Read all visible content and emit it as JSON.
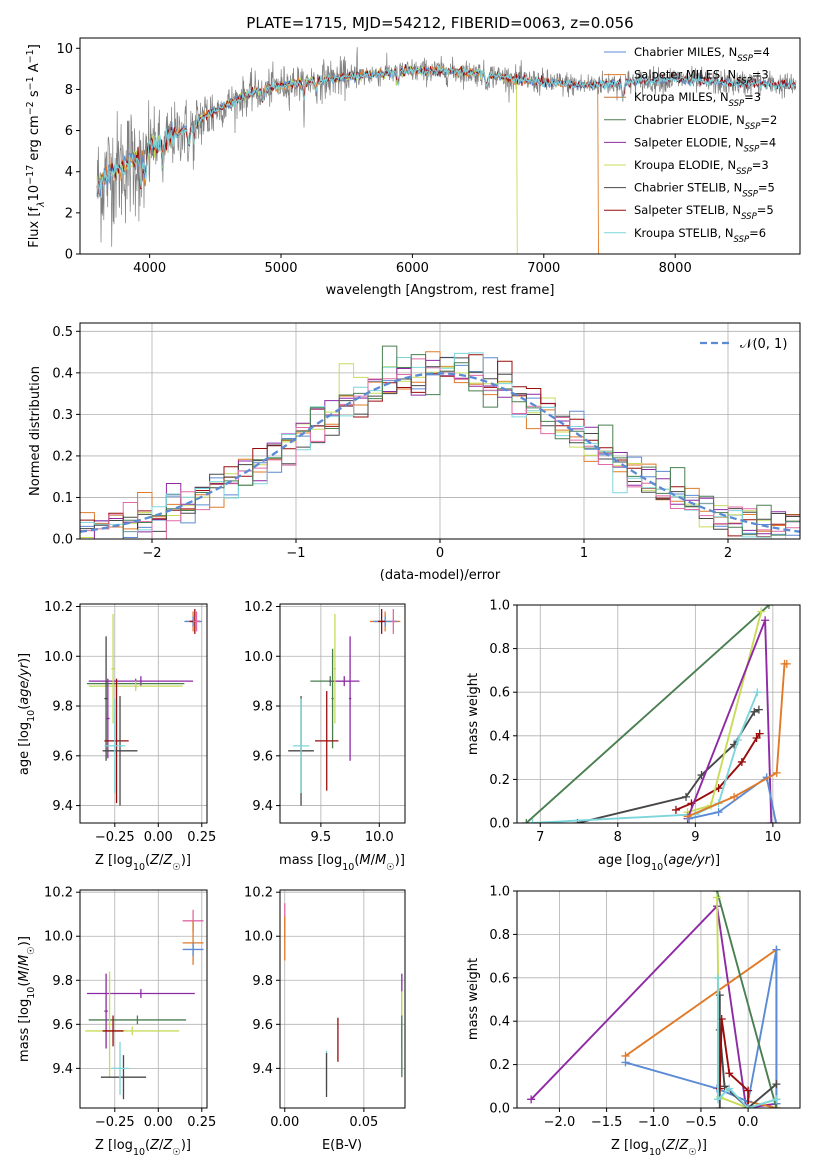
{
  "figure": {
    "title": "PLATE=1715, MJD=54212, FIBERID=0063, z=0.056"
  },
  "colors": {
    "chabrier_miles": "#5b8bd4",
    "salpeter_miles": "#e07a28",
    "kroupa_miles": "#c87530",
    "chabrier_elodie": "#4a7f50",
    "salpeter_elodie": "#8e2aa4",
    "kroupa_elodie": "#c8dc5a",
    "chabrier_stelib": "#484848",
    "salpeter_stelib": "#9a0c0c",
    "kroupa_stelib": "#7dd6dc",
    "pink": "#e06aa6",
    "spectrum": "#7f7f7f",
    "gaussian": "#5b8bd4"
  },
  "legend_spectrum": [
    {
      "label": "Chabrier MILES, N",
      "sub": "SSP",
      "tail": "=4",
      "color": "#5b8bd4"
    },
    {
      "label": "Salpeter MILES, N",
      "sub": "SSP",
      "tail": "=3",
      "color": "#e07a28"
    },
    {
      "label": "Kroupa MILES, N",
      "sub": "SSP",
      "tail": "=3",
      "color": "#c87530"
    },
    {
      "label": "Chabrier ELODIE, N",
      "sub": "SSP",
      "tail": "=2",
      "color": "#4a7f50"
    },
    {
      "label": "Salpeter ELODIE, N",
      "sub": "SSP",
      "tail": "=4",
      "color": "#8e2aa4"
    },
    {
      "label": "Kroupa ELODIE, N",
      "sub": "SSP",
      "tail": "=3",
      "color": "#c8dc5a"
    },
    {
      "label": "Chabrier STELIB, N",
      "sub": "SSP",
      "tail": "=5",
      "color": "#484848"
    },
    {
      "label": "Salpeter STELIB, N",
      "sub": "SSP",
      "tail": "=5",
      "color": "#9a0c0c"
    },
    {
      "label": "Kroupa STELIB, N",
      "sub": "SSP",
      "tail": "=6",
      "color": "#7dd6dc"
    }
  ],
  "legend_hist": {
    "label": "𝒩(0, 1)"
  },
  "chart_data": [
    {
      "id": "spectrum",
      "type": "line",
      "title": "PLATE=1715, MJD=54212, FIBERID=0063, z=0.056",
      "xlabel": "wavelength [Angstrom, rest frame]",
      "ylabel_parts": [
        "Flux [f",
        "λ",
        "10",
        "−17",
        " erg cm",
        "−2",
        " s",
        "−1",
        " A",
        "−1",
        "]"
      ],
      "xlim": [
        3470,
        8950
      ],
      "ylim": [
        0,
        10.5
      ],
      "xticks": [
        4000,
        5000,
        6000,
        7000,
        8000
      ],
      "yticks": [
        0,
        2,
        4,
        6,
        8,
        10
      ],
      "continuum_x": [
        3600,
        3700,
        3800,
        3900,
        4000,
        4200,
        4400,
        4600,
        4800,
        5000,
        5200,
        5500,
        5800,
        6000,
        6200,
        6500,
        6700,
        6900,
        7100,
        7300,
        7500,
        7800,
        8000,
        8200,
        8400,
        8600,
        8900
      ],
      "continuum_y": [
        3.2,
        4.0,
        4.2,
        4.7,
        5.2,
        5.8,
        6.6,
        7.3,
        7.9,
        8.2,
        8.4,
        8.6,
        8.8,
        8.9,
        8.9,
        8.8,
        8.6,
        8.4,
        8.3,
        8.2,
        8.3,
        8.4,
        8.5,
        8.4,
        8.3,
        8.3,
        8.2
      ],
      "data_range": [
        3600,
        8920
      ]
    },
    {
      "id": "residuals",
      "type": "bar",
      "xlabel": "(data-model)/error",
      "ylabel": "Normed distribution",
      "xlim": [
        -2.5,
        2.5
      ],
      "ylim": [
        0,
        0.52
      ],
      "xticks": [
        -2,
        -1,
        0,
        1,
        2
      ],
      "yticks": [
        0.0,
        0.1,
        0.2,
        0.3,
        0.4,
        0.5
      ],
      "bin_width": 0.1,
      "grid": true,
      "legend_position": "top-right"
    },
    {
      "id": "z_age",
      "type": "scatter",
      "xlabel": "Z [log10(Z/Z☉)]",
      "ylabel": "age [log10(age/yr)]",
      "xlim": [
        -0.45,
        0.28
      ],
      "ylim": [
        9.33,
        10.21
      ],
      "xticks": [
        -0.25,
        0.0,
        0.25
      ],
      "yticks": [
        9.4,
        9.6,
        9.8,
        10.0,
        10.2
      ],
      "points": [
        {
          "x": 0.2,
          "y": 10.14,
          "xerr": 0.04,
          "yerr": 0.04,
          "color": "#e07a28"
        },
        {
          "x": 0.2,
          "y": 10.14,
          "xerr": 0.05,
          "yerr": 0.02,
          "color": "#5b8bd4"
        },
        {
          "x": 0.21,
          "y": 10.14,
          "xerr": 0.03,
          "yerr": 0.05,
          "color": "#9a0c0c"
        },
        {
          "x": 0.22,
          "y": 10.14,
          "xerr": 0.02,
          "yerr": 0.04,
          "color": "#e06aa6"
        },
        {
          "x": -0.1,
          "y": 9.9,
          "xerr": 0.3,
          "yerr": 0.02,
          "color": "#8e2aa4"
        },
        {
          "x": -0.13,
          "y": 9.89,
          "xerr": 0.28,
          "yerr": 0.02,
          "color": "#4a7f50"
        },
        {
          "x": -0.13,
          "y": 9.88,
          "xerr": 0.27,
          "yerr": 0.02,
          "color": "#c8dc5a"
        },
        {
          "x": -0.3,
          "y": 9.83,
          "xerr": 0.01,
          "yerr": 0.25,
          "color": "#484848"
        },
        {
          "x": -0.26,
          "y": 9.95,
          "xerr": 0.01,
          "yerr": 0.22,
          "color": "#c8dc5a"
        },
        {
          "x": -0.29,
          "y": 9.75,
          "xerr": 0.01,
          "yerr": 0.16,
          "color": "#8e2aa4"
        },
        {
          "x": -0.24,
          "y": 9.66,
          "xerr": 0.07,
          "yerr": 0.25,
          "color": "#9a0c0c"
        },
        {
          "x": -0.22,
          "y": 9.62,
          "xerr": 0.1,
          "yerr": 0.22,
          "color": "#484848"
        },
        {
          "x": -0.25,
          "y": 9.64,
          "xerr": 0.06,
          "yerr": 0.19,
          "color": "#7dd6dc"
        }
      ]
    },
    {
      "id": "mass_age",
      "type": "scatter",
      "xlabel": "mass [log10(M/M☉)]",
      "ylabel": "",
      "xlim": [
        9.15,
        10.22
      ],
      "ylim": [
        9.33,
        10.21
      ],
      "xticks": [
        9.5,
        10.0
      ],
      "yticks": [
        9.4,
        9.6,
        9.8,
        10.0,
        10.2
      ],
      "points": [
        {
          "x": 10.05,
          "y": 10.14,
          "xerr": 0.13,
          "yerr": 0.04,
          "color": "#e07a28"
        },
        {
          "x": 10.05,
          "y": 10.14,
          "xerr": 0.1,
          "yerr": 0.02,
          "color": "#5b8bd4"
        },
        {
          "x": 10.02,
          "y": 10.14,
          "xerr": 0.03,
          "yerr": 0.05,
          "color": "#9a0c0c"
        },
        {
          "x": 10.12,
          "y": 10.14,
          "xerr": 0.02,
          "yerr": 0.05,
          "color": "#e06aa6"
        },
        {
          "x": 9.58,
          "y": 9.9,
          "xerr": 0.17,
          "yerr": 0.02,
          "color": "#4a7f50"
        },
        {
          "x": 9.7,
          "y": 9.9,
          "xerr": 0.13,
          "yerr": 0.02,
          "color": "#8e2aa4"
        },
        {
          "x": 9.75,
          "y": 9.83,
          "xerr": 0.01,
          "yerr": 0.25,
          "color": "#8e2aa4"
        },
        {
          "x": 9.62,
          "y": 9.95,
          "xerr": 0.01,
          "yerr": 0.22,
          "color": "#c8dc5a"
        },
        {
          "x": 9.6,
          "y": 9.83,
          "xerr": 0.01,
          "yerr": 0.2,
          "color": "#4a7f50"
        },
        {
          "x": 9.55,
          "y": 9.66,
          "xerr": 0.1,
          "yerr": 0.2,
          "color": "#9a0c0c"
        },
        {
          "x": 9.33,
          "y": 9.62,
          "xerr": 0.11,
          "yerr": 0.22,
          "color": "#484848"
        },
        {
          "x": 9.33,
          "y": 9.64,
          "xerr": 0.07,
          "yerr": 0.19,
          "color": "#7dd6dc"
        }
      ]
    },
    {
      "id": "age_massweight",
      "type": "line",
      "xlabel": "age [log10(age/yr)]",
      "ylabel": "mass weight",
      "xlim": [
        6.7,
        10.35
      ],
      "ylim": [
        0,
        1.0
      ],
      "xticks": [
        7,
        8,
        9,
        10
      ],
      "yticks": [
        0.0,
        0.2,
        0.4,
        0.6,
        0.8,
        1.0
      ],
      "grid": true,
      "series": [
        {
          "color": "#4a7f50",
          "x": [
            6.82,
            9.95
          ],
          "y": [
            0.0,
            1.0
          ]
        },
        {
          "color": "#484848",
          "x": [
            7.48,
            8.88,
            9.08,
            9.5,
            9.76,
            9.82
          ],
          "y": [
            0.0,
            0.12,
            0.22,
            0.36,
            0.51,
            0.52
          ]
        },
        {
          "color": "#9a0c0c",
          "x": [
            8.75,
            8.95,
            9.3,
            9.6,
            9.79,
            9.83
          ],
          "y": [
            0.06,
            0.09,
            0.16,
            0.28,
            0.39,
            0.41
          ]
        },
        {
          "color": "#c8dc5a",
          "x": [
            8.9,
            9.2,
            9.85
          ],
          "y": [
            0.05,
            0.08,
            0.97
          ]
        },
        {
          "color": "#7dd6dc",
          "x": [
            6.9,
            9.0,
            9.3,
            9.55,
            9.8
          ],
          "y": [
            0.0,
            0.04,
            0.09,
            0.38,
            0.6
          ]
        },
        {
          "color": "#8e2aa4",
          "x": [
            8.9,
            9.9,
            9.98
          ],
          "y": [
            0.02,
            0.93,
            0.0
          ]
        },
        {
          "color": "#5b8bd4",
          "x": [
            8.92,
            9.3,
            9.92,
            10.04
          ],
          "y": [
            0.02,
            0.05,
            0.21,
            0.0
          ]
        },
        {
          "color": "#e07a28",
          "x": [
            8.9,
            9.5,
            10.05,
            10.15,
            10.18
          ],
          "y": [
            0.03,
            0.12,
            0.23,
            0.73,
            0.73
          ]
        }
      ]
    },
    {
      "id": "z_mass",
      "type": "scatter",
      "xlabel": "Z [log10(Z/Z☉)]",
      "ylabel": "mass [log10(M/M☉)]",
      "xlim": [
        -0.45,
        0.28
      ],
      "ylim": [
        9.22,
        10.21
      ],
      "xticks": [
        -0.25,
        0.0,
        0.25
      ],
      "yticks": [
        9.4,
        9.6,
        9.8,
        10.0,
        10.2
      ],
      "points": [
        {
          "x": 0.2,
          "y": 10.07,
          "xerr": 0.06,
          "yerr": 0.05,
          "color": "#e06aa6"
        },
        {
          "x": 0.2,
          "y": 9.97,
          "xerr": 0.06,
          "yerr": 0.1,
          "color": "#e07a28"
        },
        {
          "x": 0.2,
          "y": 9.94,
          "xerr": 0.06,
          "yerr": 0.03,
          "color": "#5b8bd4"
        },
        {
          "x": -0.1,
          "y": 9.74,
          "xerr": 0.31,
          "yerr": 0.02,
          "color": "#8e2aa4"
        },
        {
          "x": -0.12,
          "y": 9.62,
          "xerr": 0.28,
          "yerr": 0.02,
          "color": "#4a7f50"
        },
        {
          "x": -0.15,
          "y": 9.57,
          "xerr": 0.27,
          "yerr": 0.02,
          "color": "#c8dc5a"
        },
        {
          "x": -0.3,
          "y": 9.66,
          "xerr": 0.01,
          "yerr": 0.17,
          "color": "#8e2aa4"
        },
        {
          "x": -0.28,
          "y": 9.6,
          "xerr": 0.01,
          "yerr": 0.24,
          "color": "#c8dc5a"
        },
        {
          "x": -0.26,
          "y": 9.57,
          "xerr": 0.06,
          "yerr": 0.07,
          "color": "#9a0c0c"
        },
        {
          "x": -0.2,
          "y": 9.36,
          "xerr": 0.13,
          "yerr": 0.1,
          "color": "#484848"
        },
        {
          "x": -0.22,
          "y": 9.4,
          "xerr": 0.05,
          "yerr": 0.12,
          "color": "#7dd6dc"
        }
      ]
    },
    {
      "id": "ebv_mass",
      "type": "scatter",
      "xlabel": "E(B-V)",
      "ylabel": "",
      "xlim": [
        -0.003,
        0.076
      ],
      "ylim": [
        9.22,
        10.21
      ],
      "xticks": [
        0.0,
        0.05
      ],
      "yticks": [
        9.4,
        9.6,
        9.8,
        10.0,
        10.2
      ],
      "points": [
        {
          "x": 0.0,
          "y": 10.07,
          "xerr": 0.0,
          "yerr": 0.08,
          "color": "#e06aa6"
        },
        {
          "x": 0.0,
          "y": 9.99,
          "xerr": 0.0,
          "yerr": 0.1,
          "color": "#e07a28"
        },
        {
          "x": 0.0264,
          "y": 9.39,
          "xerr": 0.0,
          "yerr": 0.09,
          "color": "#7dd6dc"
        },
        {
          "x": 0.0264,
          "y": 9.37,
          "xerr": 0.0,
          "yerr": 0.1,
          "color": "#484848"
        },
        {
          "x": 0.0336,
          "y": 9.53,
          "xerr": 0.0,
          "yerr": 0.1,
          "color": "#9a0c0c"
        },
        {
          "x": 0.074,
          "y": 9.66,
          "xerr": 0.0,
          "yerr": 0.17,
          "color": "#8e2aa4"
        },
        {
          "x": 0.074,
          "y": 9.57,
          "xerr": 0.0,
          "yerr": 0.18,
          "color": "#c8dc5a"
        },
        {
          "x": 0.074,
          "y": 9.5,
          "xerr": 0.0,
          "yerr": 0.14,
          "color": "#4a7f50"
        }
      ]
    },
    {
      "id": "z_massweight",
      "type": "line",
      "xlabel": "Z [log10(Z/Z☉)]",
      "ylabel": "mass weight",
      "xlim": [
        -2.45,
        0.55
      ],
      "ylim": [
        0,
        1.0
      ],
      "xticks": [
        -2.0,
        -1.5,
        -1.0,
        -0.5,
        0.0
      ],
      "yticks": [
        0.0,
        0.2,
        0.4,
        0.6,
        0.8,
        1.0
      ],
      "grid": true,
      "series": [
        {
          "color": "#8e2aa4",
          "x": [
            -2.3,
            -0.33,
            -0.02,
            0.3
          ],
          "y": [
            0.04,
            0.93,
            0.0,
            0.02
          ]
        },
        {
          "color": "#e07a28",
          "x": [
            -1.3,
            0.3,
            0.3,
            0.0
          ],
          "y": [
            0.24,
            0.73,
            0.0,
            0.03
          ]
        },
        {
          "color": "#5b8bd4",
          "x": [
            -1.3,
            -0.33,
            0.0,
            0.3,
            0.3
          ],
          "y": [
            0.21,
            0.09,
            0.03,
            0.73,
            0.02
          ]
        },
        {
          "color": "#4a7f50",
          "x": [
            -0.33,
            0.3
          ],
          "y": [
            1.0,
            0.0
          ]
        },
        {
          "color": "#c8dc5a",
          "x": [
            -0.33,
            -0.3,
            0.0,
            0.3
          ],
          "y": [
            0.97,
            0.05,
            0.0,
            0.04
          ]
        },
        {
          "color": "#484848",
          "x": [
            -0.3,
            -0.3,
            -0.3,
            -0.25,
            0.0,
            0.3
          ],
          "y": [
            0.0,
            0.52,
            0.36,
            0.1,
            0.0,
            0.11
          ]
        },
        {
          "color": "#9a0c0c",
          "x": [
            -0.3,
            -0.28,
            -0.2,
            0.0,
            0.0
          ],
          "y": [
            0.09,
            0.41,
            0.16,
            0.08,
            0.0
          ]
        },
        {
          "color": "#7dd6dc",
          "x": [
            -0.32,
            -0.32,
            -0.2,
            0.0,
            0.3
          ],
          "y": [
            0.6,
            0.04,
            0.09,
            0.0,
            0.04
          ]
        }
      ]
    }
  ]
}
